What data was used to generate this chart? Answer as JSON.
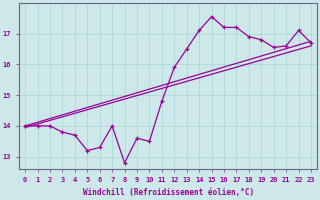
{
  "xlabel": "Windchill (Refroidissement éolien,°C)",
  "bg_color": "#cce8e8",
  "line_color": "#990099",
  "x_data": [
    0,
    1,
    2,
    3,
    4,
    5,
    6,
    7,
    8,
    9,
    10,
    11,
    12,
    13,
    14,
    15,
    16,
    17,
    18,
    19,
    20,
    21,
    22,
    23
  ],
  "y_data": [
    14.0,
    14.0,
    14.0,
    13.8,
    13.7,
    13.2,
    13.3,
    14.0,
    12.8,
    13.6,
    13.5,
    14.8,
    15.9,
    16.5,
    17.1,
    17.55,
    17.2,
    17.2,
    16.9,
    16.8,
    16.55,
    16.6,
    17.1,
    16.7
  ],
  "trend1_x": [
    0,
    23
  ],
  "trend1_y": [
    14.0,
    16.75
  ],
  "trend2_x": [
    0,
    23
  ],
  "trend2_y": [
    13.95,
    16.6
  ],
  "ylim": [
    12.6,
    18.0
  ],
  "xlim": [
    -0.5,
    23.5
  ],
  "yticks": [
    13,
    14,
    15,
    16,
    17
  ],
  "grid_color": "#99cccc",
  "grid_alpha": 0.7,
  "xlabel_color": "#990099",
  "tick_color": "#990099",
  "spine_color": "#666688"
}
